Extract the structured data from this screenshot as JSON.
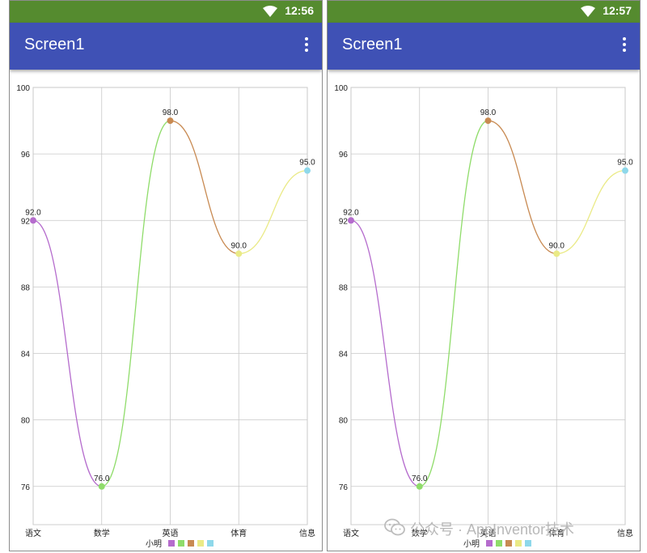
{
  "screens": [
    {
      "status_time": "12:56",
      "app_title": "Screen1",
      "chart_data": {
        "type": "line",
        "categories": [
          "语文",
          "数学",
          "英语",
          "体育",
          "信息"
        ],
        "series": [
          {
            "name": "小明",
            "values": [
              92.0,
              76.0,
              98.0,
              90.0,
              95.0
            ]
          }
        ],
        "point_labels": [
          "92.0",
          "76.0",
          "98.0",
          "90.0",
          "95.0"
        ],
        "yticks": [
          "100",
          "96",
          "92",
          "88",
          "84",
          "80",
          "76"
        ],
        "ylim": [
          73.7,
          100
        ],
        "legend_placement": "bottom-center",
        "grid": true,
        "point_colors": [
          "#b56ccd",
          "#8fdc6a",
          "#c88a52",
          "#eaea86",
          "#8ed8ea"
        ]
      }
    },
    {
      "status_time": "12:57",
      "app_title": "Screen1",
      "chart_data": {
        "type": "line",
        "categories": [
          "语文",
          "数学",
          "英语",
          "体育",
          "信息"
        ],
        "series": [
          {
            "name": "小明",
            "values": [
              92.0,
              76.0,
              98.0,
              90.0,
              95.0
            ]
          }
        ],
        "point_labels": [
          "92.0",
          "76.0",
          "98.0",
          "90.0",
          "95.0"
        ],
        "yticks": [
          "100",
          "96",
          "92",
          "88",
          "84",
          "80",
          "76"
        ],
        "ylim": [
          73.7,
          100
        ],
        "legend_placement": "bottom-center",
        "grid": true,
        "point_colors": [
          "#b56ccd",
          "#8fdc6a",
          "#c88a52",
          "#eaea86",
          "#8ed8ea"
        ]
      }
    }
  ],
  "watermark": "公众号 · AppInventor技术"
}
